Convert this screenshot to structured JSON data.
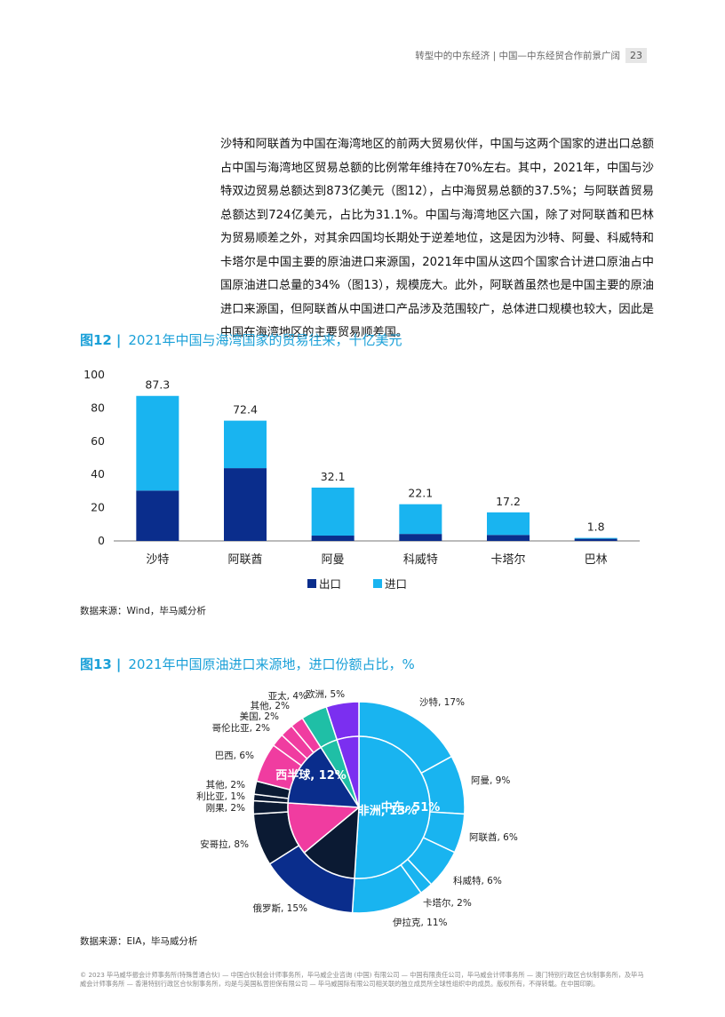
{
  "header": {
    "title": "转型中的中东经济 | 中国—中东经贸合作前景广阔",
    "page_number": "23"
  },
  "body_text": "沙特和阿联酋为中国在海湾地区的前两大贸易伙伴，中国与这两个国家的进出口总额占中国与海湾地区贸易总额的比例常年维持在70%左右。其中，2021年，中国与沙特双边贸易总额达到873亿美元（图12），占中海贸易总额的37.5%；与阿联酋贸易总额达到724亿美元，占比为31.1%。中国与海湾地区六国，除了对阿联酋和巴林为贸易顺差之外，对其余四国均长期处于逆差地位，这是因为沙特、阿曼、科威特和卡塔尔是中国主要的原油进口来源国，2021年中国从这四个国家合计进口原油占中国原油进口总量的34%（图13），规模庞大。此外，阿联酋虽然也是中国主要的原油进口来源国，但阿联酋从中国进口产品涉及范围较广，总体进口规模也较大，因此是中国在海湾地区的主要贸易顺差国。",
  "fig12": {
    "number": "图12",
    "sep": "|",
    "title": "2021年中国与海湾国家的贸易往来，十亿美元",
    "source": "数据来源：Wind，毕马威分析"
  },
  "fig13": {
    "number": "图13",
    "sep": "|",
    "title": "2021年中国原油进口来源地，进口份额占比，%",
    "source": "数据来源：EIA，毕马威分析"
  },
  "footer": "© 2023 毕马威华振会计师事务所(特殊普通合伙) — 中国合伙制会计师事务所，毕马威企业咨询 (中国) 有限公司 — 中国有限责任公司，毕马威会计师事务所 — 澳门特别行政区合伙制事务所，及毕马威会计师事务所 — 香港特别行政区合伙制事务所，均是与英国私营担保有限公司 — 毕马威国际有限公司相关联的独立成员所全球性组织中的成员。版权所有，不得转载。在中国印刷。",
  "chart_data": [
    {
      "type": "bar",
      "stacked": true,
      "categories": [
        "沙特",
        "阿联酋",
        "阿曼",
        "科威特",
        "卡塔尔",
        "巴林"
      ],
      "series": [
        {
          "name": "出口",
          "values": [
            30.3,
            43.8,
            3.2,
            4.2,
            3.6,
            1.3
          ],
          "color": "#0a2d8c"
        },
        {
          "name": "进口",
          "values": [
            57.0,
            28.6,
            28.9,
            17.9,
            13.6,
            0.5
          ],
          "color": "#19b4f0"
        }
      ],
      "totals": [
        "87.3",
        "72.4",
        "32.1",
        "22.1",
        "17.2",
        "1.8"
      ],
      "yticks": [
        "0",
        "20",
        "40",
        "60",
        "80",
        "100"
      ],
      "ylim": [
        0,
        100
      ],
      "legend": "bottom"
    },
    {
      "type": "pie",
      "inner": [
        {
          "label": "中东, 51%",
          "value": 51,
          "color": "#19b4f0"
        },
        {
          "label": "非洲, 13%",
          "value": 13,
          "color": "#0b1a33"
        },
        {
          "label": "西半球, 12%",
          "value": 12,
          "color": "#f03ca0"
        },
        {
          "label": "",
          "value": 15,
          "color": "#0a2d8c"
        },
        {
          "label": "",
          "value": 4,
          "color": "#1fbfa6"
        },
        {
          "label": "",
          "value": 5,
          "color": "#7b2ff0"
        }
      ],
      "outer": [
        {
          "label": "沙特, 17%",
          "value": 17,
          "color": "#19b4f0"
        },
        {
          "label": "阿曼, 9%",
          "value": 9,
          "color": "#19b4f0"
        },
        {
          "label": "阿联酋, 6%",
          "value": 6,
          "color": "#19b4f0"
        },
        {
          "label": "科威特, 6%",
          "value": 6,
          "color": "#19b4f0"
        },
        {
          "label": "卡塔尔, 2%",
          "value": 2,
          "color": "#19b4f0"
        },
        {
          "label": "伊拉克, 11%",
          "value": 11,
          "color": "#19b4f0"
        },
        {
          "label": "俄罗斯, 15%",
          "value": 15,
          "color": "#0a2d8c"
        },
        {
          "label": "安哥拉, 8%",
          "value": 8,
          "color": "#0b1a33"
        },
        {
          "label": "刚果, 2%",
          "value": 2,
          "color": "#0b1a33"
        },
        {
          "label": "利比亚, 1%",
          "value": 1,
          "color": "#0b1a33"
        },
        {
          "label": "其他, 2%",
          "value": 2,
          "color": "#0b1a33"
        },
        {
          "label": "巴西, 6%",
          "value": 6,
          "color": "#f03ca0"
        },
        {
          "label": "哥伦比亚, 2%",
          "value": 2,
          "color": "#f03ca0"
        },
        {
          "label": "美国, 2%",
          "value": 2,
          "color": "#f03ca0"
        },
        {
          "label": "其他, 2%",
          "value": 2,
          "color": "#f03ca0"
        },
        {
          "label": "亚太, 4%",
          "value": 4,
          "color": "#1fbfa6"
        },
        {
          "label": "欧洲, 5%",
          "value": 5,
          "color": "#7b2ff0"
        }
      ]
    }
  ]
}
